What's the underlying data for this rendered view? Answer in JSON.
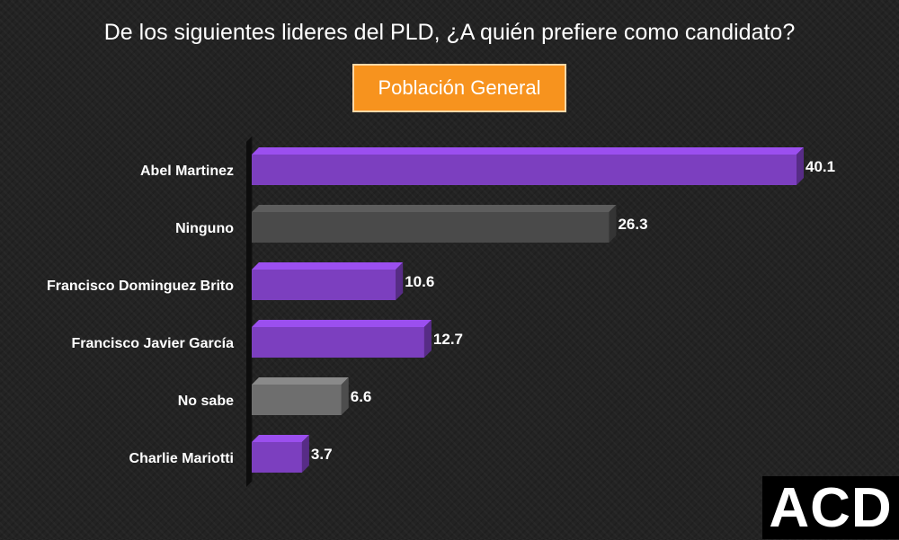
{
  "title": "De los siguientes lideres del PLD, ¿A quién prefiere como candidato?",
  "subtitle": "Población General",
  "logo_text": "ACD",
  "colors": {
    "purple": "#7c3fbf",
    "dark_gray": "#4a4a4a",
    "gray": "#6e6e6e",
    "accent": "#f7931e"
  },
  "chart_data": {
    "type": "bar",
    "orientation": "horizontal",
    "categories": [
      "Abel Martinez",
      "Ninguno",
      "Francisco Dominguez Brito",
      "Francisco Javier García",
      "No sabe",
      "Charlie Mariotti"
    ],
    "values": [
      40.1,
      26.3,
      10.6,
      12.7,
      6.6,
      3.7
    ],
    "value_labels": [
      "40.1",
      "26.3",
      "10.6",
      "12.7",
      "6.6",
      "3.7"
    ],
    "bar_colors": [
      "#7c3fbf",
      "#4a4a4a",
      "#7c3fbf",
      "#7c3fbf",
      "#6e6e6e",
      "#7c3fbf"
    ],
    "xlim": [
      0,
      40.1
    ],
    "grid": false,
    "legend": "none"
  }
}
